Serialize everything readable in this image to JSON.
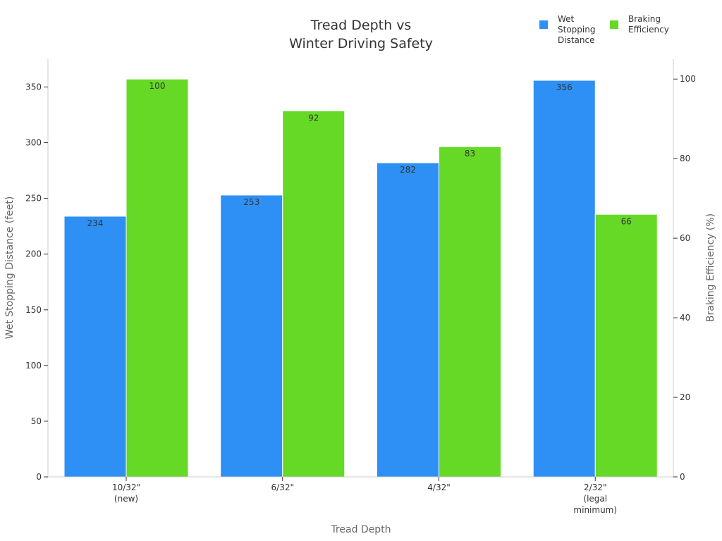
{
  "chart_data": {
    "type": "bar",
    "title": [
      "Tread Depth vs",
      "Winter Driving Safety"
    ],
    "xlabel": "Tread Depth",
    "categories": [
      [
        "10/32\"",
        "(new)"
      ],
      [
        "6/32\""
      ],
      [
        "4/32\""
      ],
      [
        "2/32\"",
        "(legal",
        "minimum)"
      ]
    ],
    "series": [
      {
        "name": [
          "Wet",
          "Stopping",
          "Distance"
        ],
        "axis": "left",
        "color": "#2e90f5",
        "values": [
          234,
          253,
          282,
          356
        ],
        "labels": [
          "234",
          "253",
          "282",
          "356"
        ]
      },
      {
        "name": [
          "Braking",
          "Efficiency"
        ],
        "axis": "right",
        "color": "#66d926",
        "values": [
          100,
          92,
          83,
          66
        ],
        "labels": [
          "100",
          "92",
          "83",
          "66"
        ]
      }
    ],
    "y_left": {
      "label": "Wet Stopping Distance (feet)",
      "range": [
        0,
        375
      ],
      "ticks": [
        0,
        50,
        100,
        150,
        200,
        250,
        300,
        350
      ],
      "tick_labels": [
        "0",
        "50",
        "100",
        "150",
        "200",
        "250",
        "300",
        "350"
      ]
    },
    "y_right": {
      "label": "Braking Efficiency (%)",
      "range": [
        0,
        105
      ],
      "ticks": [
        0,
        20,
        40,
        60,
        80,
        100
      ],
      "tick_labels": [
        "0",
        "20",
        "40",
        "60",
        "80",
        "100"
      ]
    },
    "grid": false,
    "legend_position": "top-right"
  }
}
